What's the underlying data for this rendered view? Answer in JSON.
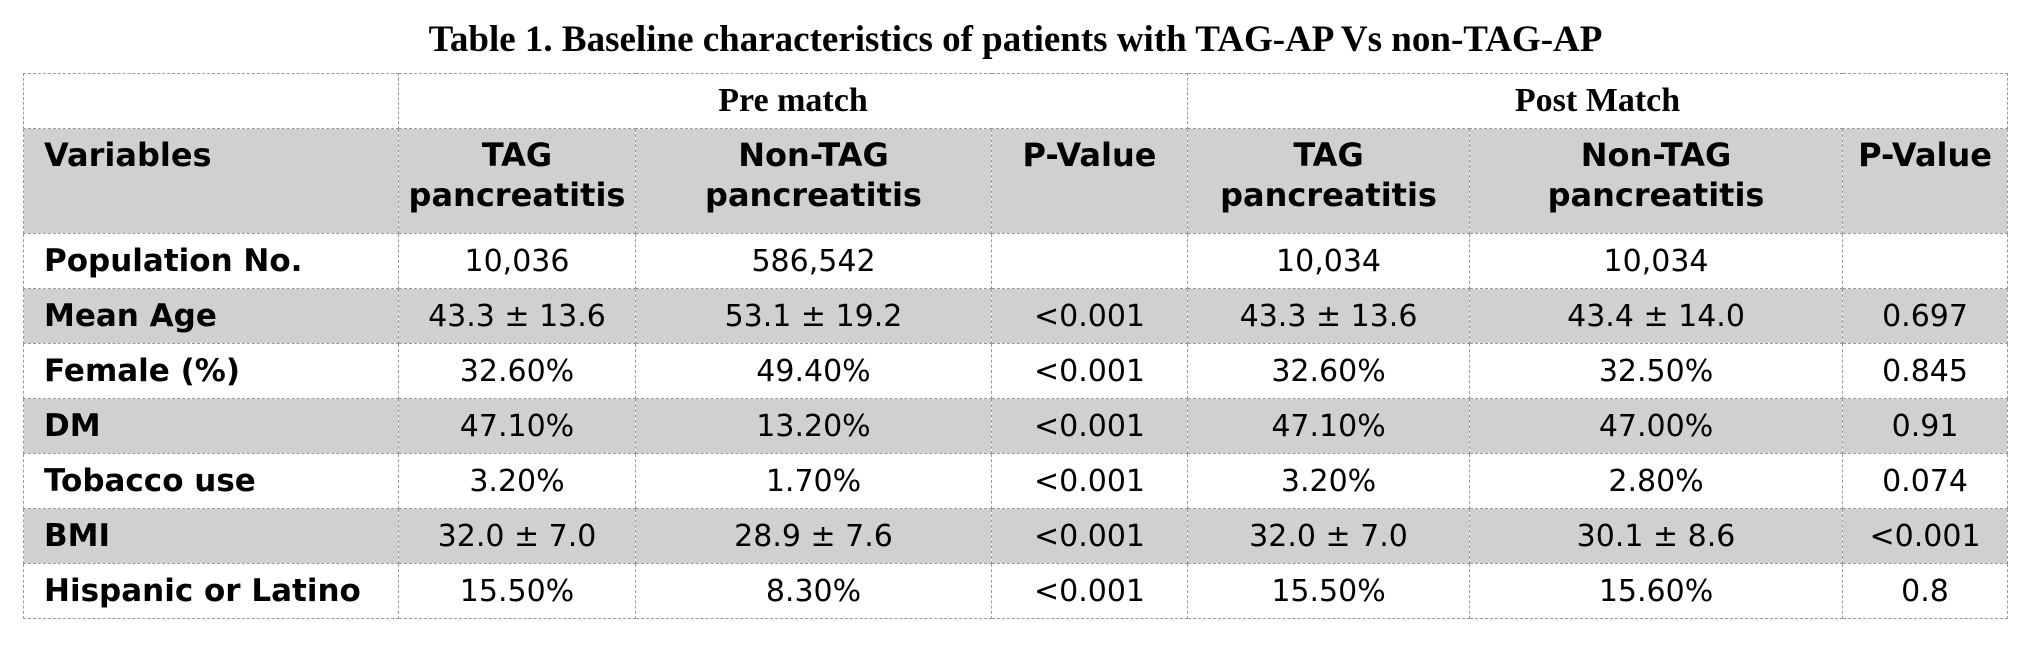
{
  "title": "Table 1. Baseline characteristics of patients with TAG-AP Vs non-TAG-AP",
  "groups": {
    "pre": "Pre match",
    "post": "Post Match"
  },
  "headers": [
    "Variables",
    "TAG pancreatitis",
    "Non-TAG pancreatitis",
    "P-Value",
    "TAG pancreatitis",
    "Non-TAG pancreatitis",
    "P-Value"
  ],
  "rows": [
    [
      "Population No.",
      "10,036",
      "586,542",
      "",
      "10,034",
      "10,034",
      ""
    ],
    [
      "Mean Age",
      "43.3 ± 13.6",
      "53.1 ± 19.2",
      "<0.001",
      "43.3 ± 13.6",
      "43.4 ± 14.0",
      "0.697"
    ],
    [
      "Female (%)",
      "32.60%",
      "49.40%",
      "<0.001",
      "32.60%",
      "32.50%",
      "0.845"
    ],
    [
      "DM",
      "47.10%",
      "13.20%",
      "<0.001",
      "47.10%",
      "47.00%",
      "0.91"
    ],
    [
      "Tobacco use",
      "3.20%",
      "1.70%",
      "<0.001",
      "3.20%",
      "2.80%",
      "0.074"
    ],
    [
      "BMI",
      "32.0 ± 7.0",
      "28.9 ± 7.6",
      "<0.001",
      "32.0 ± 7.0",
      "30.1 ± 8.6",
      "<0.001"
    ],
    [
      "Hispanic or Latino",
      "15.50%",
      "8.30%",
      "<0.001",
      "15.50%",
      "15.60%",
      "0.8"
    ]
  ],
  "colors": {
    "shade": "#d0d0d0",
    "border": "#9a9a9a"
  }
}
